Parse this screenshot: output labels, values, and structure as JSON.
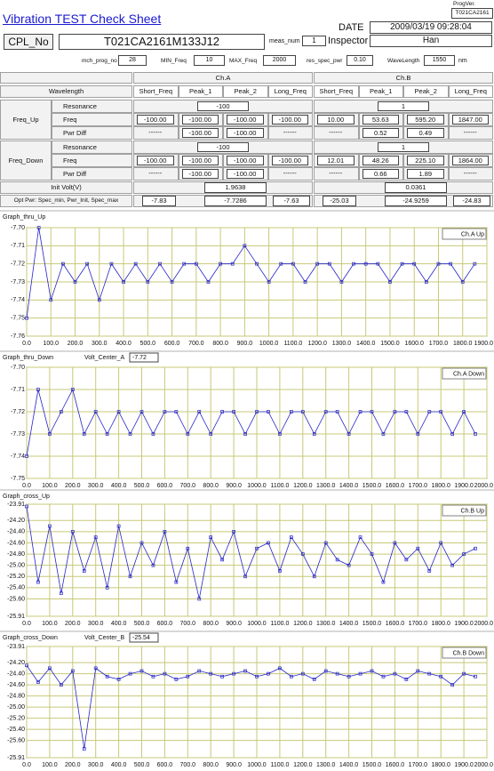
{
  "header": {
    "title": "Vibration TEST Check Sheet",
    "prog_ver_label": "ProgVer.",
    "prog_ver": "T021CA2161",
    "date_label": "DATE",
    "date": "2009/03/19 09:28:04",
    "cpl_label": "CPL_No",
    "cpl_no": "T021CA2161M133J12",
    "meas_label": "meas_num",
    "meas_num": "1",
    "inspector_label": "Inspector",
    "inspector": "Han"
  },
  "params": {
    "items": [
      {
        "label": "mch_prog_no",
        "value": "28"
      },
      {
        "label": "MIN_Freq",
        "value": "10"
      },
      {
        "label": "MAX_Freq",
        "value": "2000"
      },
      {
        "label": "res_spec_pwr",
        "value": "0.10"
      },
      {
        "label": "WaveLength",
        "value": "1550"
      }
    ],
    "unit": "nm"
  },
  "table": {
    "channels": [
      "Ch.A",
      "Ch.B"
    ],
    "wavelength_label": "Wavelength",
    "columns": [
      "Short_Freq",
      "Peak_1",
      "Peak_2",
      "Long_Freq"
    ],
    "blocks": [
      {
        "label": "Freq_Up",
        "resonance_label": "Resonance",
        "resonance": [
          "-100",
          "1"
        ],
        "freq_label": "Freq",
        "freq": [
          [
            "-100.00",
            "-100.00",
            "-100.00",
            "-100.00"
          ],
          [
            "10.00",
            "53.63",
            "595.20",
            "1847.00"
          ]
        ],
        "pwr_label": "Pwr Diff",
        "pwr": [
          [
            "------",
            "-100.00",
            "-100.00",
            "------"
          ],
          [
            "------",
            "0.52",
            "0.49",
            "------"
          ]
        ]
      },
      {
        "label": "Freq_Down",
        "resonance_label": "Resonance",
        "resonance": [
          "-100",
          "1"
        ],
        "freq_label": "Freq",
        "freq": [
          [
            "-100.00",
            "-100.00",
            "-100.00",
            "-100.00"
          ],
          [
            "12.01",
            "48.26",
            "225.10",
            "1864.00"
          ]
        ],
        "pwr_label": "Pwr Diff",
        "pwr": [
          [
            "------",
            "-100.00",
            "-100.00",
            "------"
          ],
          [
            "------",
            "0.66",
            "1.89",
            "------"
          ]
        ]
      }
    ],
    "init_label": "Init Volt(V)",
    "init": [
      "1.9638",
      "0.0361"
    ],
    "opt_label": "Opt Pwr: Spec_min, Pwr_Init, Spec_max",
    "opt": [
      [
        "-7.83",
        "-7.7286",
        "-7.63"
      ],
      [
        "-25.03",
        "-24.9259",
        "-24.83"
      ]
    ]
  },
  "chart_data": [
    {
      "type": "line",
      "title": "Graph_thru_Up",
      "grid": true,
      "x": [
        0,
        50,
        100,
        150,
        200,
        250,
        300,
        350,
        400,
        450,
        500,
        550,
        600,
        650,
        700,
        750,
        800,
        850,
        900,
        950,
        1000,
        1050,
        1100,
        1150,
        1200,
        1250,
        1300,
        1350,
        1400,
        1450,
        1500,
        1550,
        1600,
        1650,
        1700,
        1750,
        1800,
        1850
      ],
      "series": [
        {
          "name": "Ch.A Up",
          "color": "#2424c8",
          "values": [
            -7.75,
            -7.7,
            -7.74,
            -7.72,
            -7.73,
            -7.72,
            -7.74,
            -7.72,
            -7.73,
            -7.72,
            -7.73,
            -7.72,
            -7.73,
            -7.72,
            -7.72,
            -7.73,
            -7.72,
            -7.72,
            -7.71,
            -7.72,
            -7.73,
            -7.72,
            -7.72,
            -7.73,
            -7.72,
            -7.72,
            -7.73,
            -7.72,
            -7.72,
            -7.72,
            -7.73,
            -7.72,
            -7.72,
            -7.73,
            -7.72,
            -7.72,
            -7.73,
            -7.72
          ]
        }
      ],
      "xlim": [
        0,
        1900
      ],
      "xticks": [
        {
          "value": 0,
          "label": "0.0"
        },
        {
          "value": 100,
          "label": "100.0"
        },
        {
          "value": 200,
          "label": "200.0"
        },
        {
          "value": 300,
          "label": "300.0"
        },
        {
          "value": 400,
          "label": "400.0"
        },
        {
          "value": 500,
          "label": "500.0"
        },
        {
          "value": 600,
          "label": "600.0"
        },
        {
          "value": 700,
          "label": "700.0"
        },
        {
          "value": 800,
          "label": "800.0"
        },
        {
          "value": 900,
          "label": "900.0"
        },
        {
          "value": 1000,
          "label": "1000.0"
        },
        {
          "value": 1100,
          "label": "1100.0"
        },
        {
          "value": 1200,
          "label": "1200.0"
        },
        {
          "value": 1300,
          "label": "1300.0"
        },
        {
          "value": 1400,
          "label": "1400.0"
        },
        {
          "value": 1500,
          "label": "1500.0"
        },
        {
          "value": 1600,
          "label": "1600.0"
        },
        {
          "value": 1700,
          "label": "1700.0"
        },
        {
          "value": 1800,
          "label": "1800.0"
        },
        {
          "value": 1900,
          "label": "1900.0"
        }
      ],
      "ylim": [
        -7.76,
        -7.7
      ],
      "yticks": [
        {
          "value": -7.7,
          "label": "-7.70"
        },
        -7.71,
        -7.72,
        -7.73,
        -7.74,
        -7.75,
        -7.76
      ]
    },
    {
      "type": "line",
      "title": "Graph_thru_Down",
      "grid": true,
      "annotation": {
        "label": "Volt_Center_A",
        "value": "-7.72"
      },
      "x": [
        0,
        50,
        100,
        150,
        200,
        250,
        300,
        350,
        400,
        450,
        500,
        550,
        600,
        650,
        700,
        750,
        800,
        850,
        900,
        950,
        1000,
        1050,
        1100,
        1150,
        1200,
        1250,
        1300,
        1350,
        1400,
        1450,
        1500,
        1550,
        1600,
        1650,
        1700,
        1750,
        1800,
        1850,
        1900,
        1950
      ],
      "series": [
        {
          "name": "Ch.A Down",
          "color": "#2424c8",
          "values": [
            -7.74,
            -7.71,
            -7.73,
            -7.72,
            -7.71,
            -7.73,
            -7.72,
            -7.73,
            -7.72,
            -7.73,
            -7.72,
            -7.73,
            -7.72,
            -7.72,
            -7.73,
            -7.72,
            -7.73,
            -7.72,
            -7.72,
            -7.73,
            -7.72,
            -7.72,
            -7.73,
            -7.72,
            -7.72,
            -7.73,
            -7.72,
            -7.72,
            -7.73,
            -7.72,
            -7.72,
            -7.73,
            -7.72,
            -7.72,
            -7.73,
            -7.72,
            -7.72,
            -7.73,
            -7.72,
            -7.73
          ]
        }
      ],
      "xlim": [
        0,
        2000
      ],
      "xticks": [
        {
          "value": 0,
          "label": "0.0"
        },
        {
          "value": 100,
          "label": "100.0"
        },
        {
          "value": 200,
          "label": "200.0"
        },
        {
          "value": 300,
          "label": "300.0"
        },
        {
          "value": 400,
          "label": "400.0"
        },
        {
          "value": 500,
          "label": "500.0"
        },
        {
          "value": 600,
          "label": "600.0"
        },
        {
          "value": 700,
          "label": "700.0"
        },
        {
          "value": 800,
          "label": "800.0"
        },
        {
          "value": 900,
          "label": "900.0"
        },
        {
          "value": 1000,
          "label": "1000.0"
        },
        {
          "value": 1100,
          "label": "1100.0"
        },
        {
          "value": 1200,
          "label": "1200.0"
        },
        {
          "value": 1300,
          "label": "1300.0"
        },
        {
          "value": 1400,
          "label": "1400.0"
        },
        {
          "value": 1500,
          "label": "1500.0"
        },
        {
          "value": 1600,
          "label": "1600.0"
        },
        {
          "value": 1700,
          "label": "1700.0"
        },
        {
          "value": 1800,
          "label": "1800.0"
        },
        {
          "value": 1900,
          "label": "1900.0"
        },
        {
          "value": 2000,
          "label": "2000.0"
        }
      ],
      "ylim": [
        -7.75,
        -7.7
      ],
      "yticks": [
        {
          "value": -7.7,
          "label": "-7.70"
        },
        -7.71,
        -7.72,
        -7.73,
        -7.74,
        -7.75
      ]
    },
    {
      "type": "line",
      "title": "Graph_cross_Up",
      "grid": true,
      "x": [
        0,
        50,
        100,
        150,
        200,
        250,
        300,
        350,
        400,
        450,
        500,
        550,
        600,
        650,
        700,
        750,
        800,
        850,
        900,
        950,
        1000,
        1050,
        1100,
        1150,
        1200,
        1250,
        1300,
        1350,
        1400,
        1450,
        1500,
        1550,
        1600,
        1650,
        1700,
        1750,
        1800,
        1850,
        1900,
        1950
      ],
      "series": [
        {
          "name": "Ch.B Up",
          "color": "#2424c8",
          "values": [
            -23.95,
            -25.3,
            -24.3,
            -25.5,
            -24.4,
            -25.1,
            -24.5,
            -25.4,
            -24.3,
            -25.2,
            -24.6,
            -25.0,
            -24.4,
            -25.3,
            -24.7,
            -25.6,
            -24.5,
            -24.9,
            -24.4,
            -25.2,
            -24.7,
            -24.6,
            -25.1,
            -24.5,
            -24.8,
            -25.2,
            -24.6,
            -24.9,
            -25.0,
            -24.5,
            -24.8,
            -25.3,
            -24.6,
            -24.9,
            -24.7,
            -25.1,
            -24.6,
            -25.0,
            -24.8,
            -24.7
          ]
        }
      ],
      "xlim": [
        0,
        2000
      ],
      "xticks": [
        {
          "value": 0,
          "label": "0.0"
        },
        {
          "value": 100,
          "label": "100.0"
        },
        {
          "value": 200,
          "label": "200.0"
        },
        {
          "value": 300,
          "label": "300.0"
        },
        {
          "value": 400,
          "label": "400.0"
        },
        {
          "value": 500,
          "label": "500.0"
        },
        {
          "value": 600,
          "label": "600.0"
        },
        {
          "value": 700,
          "label": "700.0"
        },
        {
          "value": 800,
          "label": "800.0"
        },
        {
          "value": 900,
          "label": "900.0"
        },
        {
          "value": 1000,
          "label": "1000.0"
        },
        {
          "value": 1100,
          "label": "1100.0"
        },
        {
          "value": 1200,
          "label": "1200.0"
        },
        {
          "value": 1300,
          "label": "1300.0"
        },
        {
          "value": 1400,
          "label": "1400.0"
        },
        {
          "value": 1500,
          "label": "1500.0"
        },
        {
          "value": 1600,
          "label": "1600.0"
        },
        {
          "value": 1700,
          "label": "1700.0"
        },
        {
          "value": 1800,
          "label": "1800.0"
        },
        {
          "value": 1900,
          "label": "1900.0"
        },
        {
          "value": 2000,
          "label": "2000.0"
        }
      ],
      "ylim": [
        -25.91,
        -23.91
      ],
      "yticks": [
        -23.91,
        {
          "value": -24.2,
          "label": "-24.20"
        },
        {
          "value": -24.4,
          "label": "-24.40"
        },
        {
          "value": -24.6,
          "label": "-24.60"
        },
        {
          "value": -24.8,
          "label": "-24.80"
        },
        {
          "value": -25.0,
          "label": "-25.00"
        },
        {
          "value": -25.2,
          "label": "-25.20"
        },
        {
          "value": -25.4,
          "label": "-25.40"
        },
        {
          "value": -25.6,
          "label": "-25.60"
        },
        -25.91
      ]
    },
    {
      "type": "line",
      "title": "Graph_cross_Down",
      "grid": true,
      "annotation": {
        "label": "Volt_Center_B",
        "value": "-25.54"
      },
      "x": [
        0,
        50,
        100,
        150,
        200,
        250,
        300,
        350,
        400,
        450,
        500,
        550,
        600,
        650,
        700,
        750,
        800,
        850,
        900,
        950,
        1000,
        1050,
        1100,
        1150,
        1200,
        1250,
        1300,
        1350,
        1400,
        1450,
        1500,
        1550,
        1600,
        1650,
        1700,
        1750,
        1800,
        1850,
        1900,
        1950
      ],
      "series": [
        {
          "name": "Ch.B Down",
          "color": "#2424c8",
          "values": [
            -24.25,
            -24.55,
            -24.3,
            -24.6,
            -24.35,
            -25.75,
            -24.3,
            -24.45,
            -24.5,
            -24.4,
            -24.35,
            -24.45,
            -24.4,
            -24.5,
            -24.45,
            -24.35,
            -24.4,
            -24.45,
            -24.4,
            -24.35,
            -24.45,
            -24.4,
            -24.3,
            -24.45,
            -24.4,
            -24.5,
            -24.35,
            -24.4,
            -24.45,
            -24.4,
            -24.35,
            -24.45,
            -24.4,
            -24.5,
            -24.35,
            -24.4,
            -24.45,
            -24.6,
            -24.4,
            -24.45
          ]
        }
      ],
      "xlim": [
        0,
        2000
      ],
      "xticks": [
        {
          "value": 0,
          "label": "0.0"
        },
        {
          "value": 100,
          "label": "100.0"
        },
        {
          "value": 200,
          "label": "200.0"
        },
        {
          "value": 300,
          "label": "300.0"
        },
        {
          "value": 400,
          "label": "400.0"
        },
        {
          "value": 500,
          "label": "500.0"
        },
        {
          "value": 600,
          "label": "600.0"
        },
        {
          "value": 700,
          "label": "700.0"
        },
        {
          "value": 800,
          "label": "800.0"
        },
        {
          "value": 900,
          "label": "900.0"
        },
        {
          "value": 1000,
          "label": "1000.0"
        },
        {
          "value": 1100,
          "label": "1100.0"
        },
        {
          "value": 1200,
          "label": "1200.0"
        },
        {
          "value": 1300,
          "label": "1300.0"
        },
        {
          "value": 1400,
          "label": "1400.0"
        },
        {
          "value": 1500,
          "label": "1500.0"
        },
        {
          "value": 1600,
          "label": "1600.0"
        },
        {
          "value": 1700,
          "label": "1700.0"
        },
        {
          "value": 1800,
          "label": "1800.0"
        },
        {
          "value": 1900,
          "label": "1900.0"
        },
        {
          "value": 2000,
          "label": "2000.0"
        }
      ],
      "ylim": [
        -25.91,
        -23.91
      ],
      "yticks": [
        -23.91,
        {
          "value": -24.2,
          "label": "-24.20"
        },
        {
          "value": -24.4,
          "label": "-24.40"
        },
        {
          "value": -24.6,
          "label": "-24.60"
        },
        {
          "value": -24.8,
          "label": "-24.80"
        },
        {
          "value": -25.0,
          "label": "-25.00"
        },
        {
          "value": -25.2,
          "label": "-25.20"
        },
        {
          "value": -25.4,
          "label": "-25.40"
        },
        {
          "value": -25.6,
          "label": "-25.60"
        },
        -25.91
      ]
    }
  ]
}
